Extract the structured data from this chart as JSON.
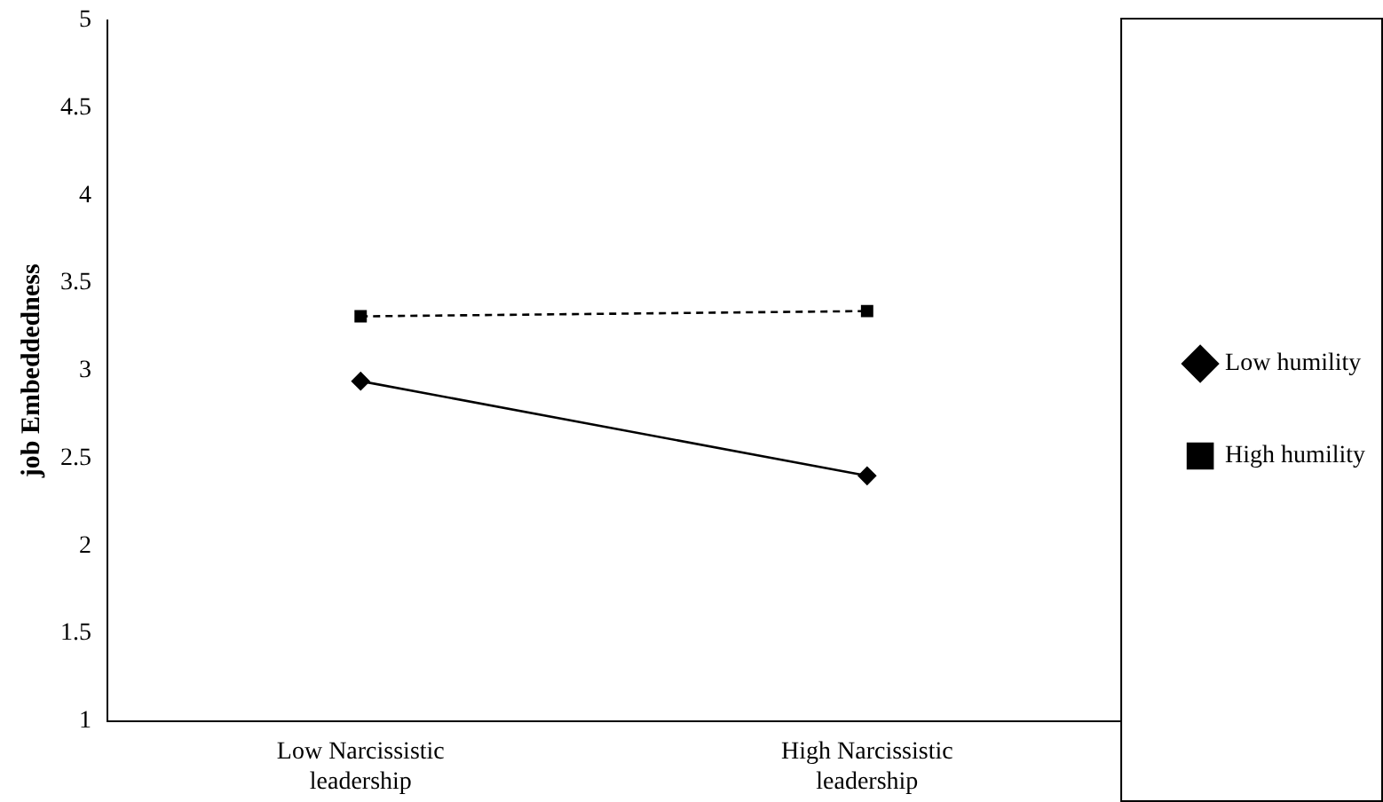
{
  "chart_data": {
    "type": "line",
    "ylabel": "job Embeddedness",
    "categories": [
      "Low Narcissistic leadership",
      "High Narcissistic leadership"
    ],
    "series": [
      {
        "name": "Low humility",
        "color": "#000000",
        "values": [
          2.94,
          2.4
        ],
        "marker": "diamond",
        "line_style": "solid"
      },
      {
        "name": "High humility",
        "color": "#000000",
        "values": [
          3.31,
          3.34
        ],
        "marker": "square",
        "line_style": "dashed"
      }
    ],
    "ylim": [
      1,
      5
    ],
    "yticks": [
      1,
      1.5,
      2,
      2.5,
      3,
      3.5,
      4,
      4.5,
      5
    ],
    "grid": false,
    "legend": "right"
  }
}
